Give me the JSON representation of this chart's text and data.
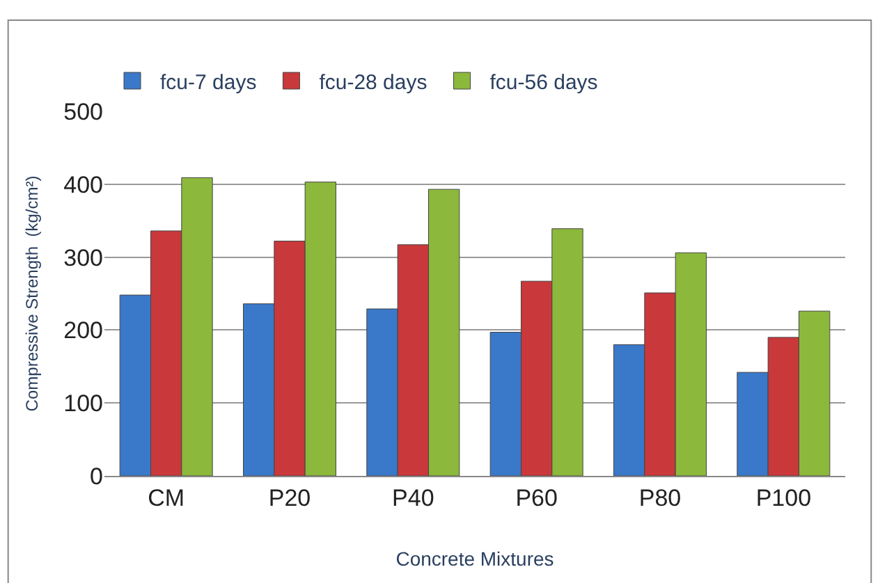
{
  "chart_data": {
    "type": "bar",
    "xlabel": "Concrete Mixtures",
    "ylabel": "Compressive Strength  (kg/cm²)",
    "categories": [
      "CM",
      "P20",
      "P40",
      "P60",
      "P80",
      "P100"
    ],
    "series": [
      {
        "name": "fcu-7 days",
        "color": "#3a78c9",
        "values": [
          248,
          236,
          229,
          197,
          180,
          142
        ]
      },
      {
        "name": "fcu-28 days",
        "color": "#c9383a",
        "values": [
          336,
          322,
          317,
          267,
          251,
          190
        ]
      },
      {
        "name": "fcu-56 days",
        "color": "#8cb83c",
        "values": [
          409,
          403,
          393,
          339,
          306,
          226
        ]
      }
    ],
    "ylim": [
      0,
      500
    ],
    "yticks": [
      0,
      100,
      200,
      300,
      400,
      500
    ],
    "grid": "y",
    "legend": "top left"
  }
}
